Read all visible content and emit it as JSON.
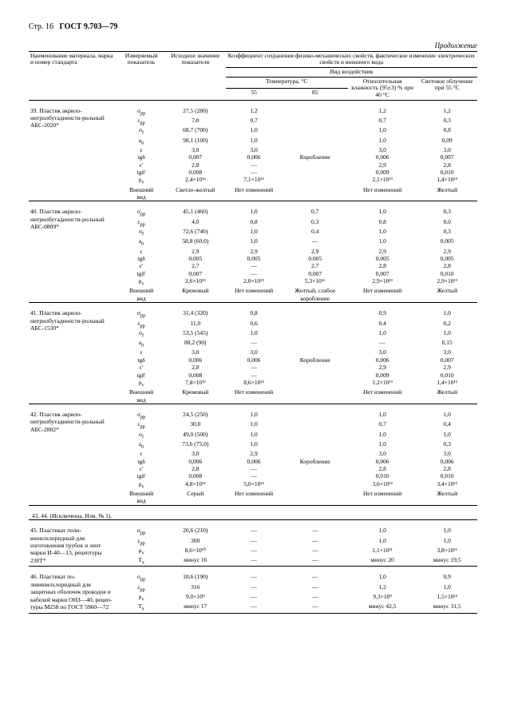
{
  "page_label": "Стр. 16",
  "standard": "ГОСТ 9.703—79",
  "continuation": "Продолжение",
  "header": {
    "col1": "Наименование материала, марка и номер стандарта",
    "col2": "Измеряемый показатель",
    "col3": "Исходное значение показателя",
    "group": "Коэффициент сохранения физико-механических свойств, фактическое изменение электрических свойств и внешнего вида",
    "subgroup": "Вид воздействия",
    "temp": "Температура, °С",
    "t55": "55",
    "t85": "85",
    "hum": "Относительная влажность (95±3) % при 40 °С",
    "light": "Световое облучение при 55 °С"
  },
  "excluded_row": "43, 44. (Исключены, Изм. № 1).",
  "materials": [
    {
      "name": "39. Пластик акрило-нитрилбутадиенсти-рольный АБС-2020*",
      "rows": [
        {
          "p": "σ_рр",
          "i": "27,5 (280)",
          "a": "1,2",
          "b": "",
          "c": "1,2",
          "d": "1,2"
        },
        {
          "p": "ε_рр",
          "i": "7,0",
          "a": "0,7",
          "b": "",
          "c": "0,7",
          "d": "0,3"
        },
        {
          "p": "σ_f",
          "i": "68,7 (700)",
          "a": "1,0",
          "b": "",
          "c": "1,0",
          "d": "0,8"
        },
        {
          "p": "a_п",
          "i": "98,1 (100)",
          "a": "1,0",
          "b": "",
          "c": "1,0",
          "d": "0,09"
        },
        {
          "p": "ε",
          "i": "3,0",
          "a": "3,0",
          "b": "",
          "c": "3,0",
          "d": "3,0"
        },
        {
          "p": "tgδ",
          "i": "0,007",
          "a": "0,006",
          "b": "Коробление",
          "c": "0,006",
          "d": "0,007"
        },
        {
          "p": "ε'",
          "i": "2,8",
          "a": "—",
          "b": "",
          "c": "2,9",
          "d": "2,8"
        },
        {
          "p": "tgδ'",
          "i": "0,008",
          "a": "—",
          "b": "",
          "c": "0,009",
          "d": "0,010"
        },
        {
          "p": "ρ_v",
          "i": "2,4×10¹³",
          "a": "7,1×10¹²",
          "b": "",
          "c": "2,1×10¹³",
          "d": "1,4×10¹³"
        },
        {
          "p": "Внешний вид",
          "i": "Светло-желтый",
          "a": "Нет изменений",
          "b": "",
          "c": "Нет изменений",
          "d": "Желтый"
        }
      ]
    },
    {
      "name": "40. Пластик акрило-нитрилбутадиенсти-рольный АБС-0809*",
      "rows": [
        {
          "p": "σ_рр",
          "i": "45,1 (460)",
          "a": "1,0",
          "b": "0,7",
          "c": "1,0",
          "d": "0,3"
        },
        {
          "p": "ε_рр",
          "i": "4,0",
          "a": "0,8",
          "b": "0,3",
          "c": "0,8",
          "d": "0,0"
        },
        {
          "p": "σ_f",
          "i": "72,6 (740)",
          "a": "1,0",
          "b": "0,4",
          "c": "1,0",
          "d": "0,3"
        },
        {
          "p": "a_п",
          "i": "58,8 (60,0)",
          "a": "1,0",
          "b": "—",
          "c": "1,0",
          "d": "0,005"
        },
        {
          "p": "ε",
          "i": "2,9",
          "a": "2,9",
          "b": "2,9",
          "c": "2,9",
          "d": "2,9"
        },
        {
          "p": "tgδ",
          "i": "0,005",
          "a": "0,005",
          "b": "0,005",
          "c": "0,005",
          "d": "0,005"
        },
        {
          "p": "ε'",
          "i": "2,7",
          "a": "—",
          "b": "2,7",
          "c": "2,8",
          "d": "2,8"
        },
        {
          "p": "tgδ'",
          "i": "0,007",
          "a": "—",
          "b": "0,007",
          "c": "0,007",
          "d": "0,010"
        },
        {
          "p": "ρ_v",
          "i": "2,6×10¹³",
          "a": "2,0×10¹⁵",
          "b": "5,3×10¹⁶",
          "c": "2,9×10¹³",
          "d": "2,9×10¹³"
        },
        {
          "p": "Внешний вид",
          "i": "Кремовый",
          "a": "Нет изменений",
          "b": "Желтый, слабое коробление",
          "c": "Нет изменений",
          "d": "Желтый"
        }
      ]
    },
    {
      "name": "41. Пластик акрило-нитрилбутадиенсти-рольный АБС-1530*",
      "rows": [
        {
          "p": "σ_рр",
          "i": "31,4 (320)",
          "a": "0,8",
          "b": "",
          "c": "0,9",
          "d": "1,0"
        },
        {
          "p": "ε_рр",
          "i": "11,0",
          "a": "0,6",
          "b": "",
          "c": "0,4",
          "d": "0,2"
        },
        {
          "p": "σ_f",
          "i": "53,5 (545)",
          "a": "1,0",
          "b": "",
          "c": "1,0",
          "d": "1,0"
        },
        {
          "p": "a_п",
          "i": "88,2 (90)",
          "a": "—",
          "b": "",
          "c": "—",
          "d": "0,15"
        },
        {
          "p": "ε",
          "i": "3,0",
          "a": "3,0",
          "b": "",
          "c": "3,0",
          "d": "3,0"
        },
        {
          "p": "tgδ",
          "i": "0,006",
          "a": "0,006",
          "b": "Коробление",
          "c": "0,006",
          "d": "0,007"
        },
        {
          "p": "ε'",
          "i": "2,8",
          "a": "—",
          "b": "",
          "c": "2,9",
          "d": "2,9"
        },
        {
          "p": "tgδ'",
          "i": "0,008",
          "a": "—",
          "b": "",
          "c": "0,009",
          "d": "0,010"
        },
        {
          "p": "ρ_v",
          "i": "7,8×10¹²",
          "a": "8,6×10¹²",
          "b": "",
          "c": "1,2×10¹³",
          "d": "1,4×10¹²"
        },
        {
          "p": "Внешний вид",
          "i": "Кремовый",
          "a": "Нет изменений",
          "b": "",
          "c": "Нет изменений",
          "d": "Желтый"
        }
      ]
    },
    {
      "name": "42. Пластик акрило-нитрилбутадиенсти-рольный АБС-2802*",
      "rows": [
        {
          "p": "σ_рр",
          "i": "24,5 (250)",
          "a": "1,0",
          "b": "",
          "c": "1,0",
          "d": "1,0"
        },
        {
          "p": "ε_рр",
          "i": "30,0",
          "a": "1,0",
          "b": "",
          "c": "0,7",
          "d": "0,4"
        },
        {
          "p": "σ_f",
          "i": "49,0 (500)",
          "a": "1,0",
          "b": "",
          "c": "1,0",
          "d": "1,0"
        },
        {
          "p": "a_п",
          "i": "73,6 (75,0)",
          "a": "1,0",
          "b": "",
          "c": "1,0",
          "d": "0,3"
        },
        {
          "p": "ε",
          "i": "3,0",
          "a": "2,9",
          "b": "",
          "c": "3,0",
          "d": "3,0"
        },
        {
          "p": "tgδ",
          "i": "0,006",
          "a": "0,006",
          "b": "Коробление",
          "c": "0,006",
          "d": "0,006"
        },
        {
          "p": "ε'",
          "i": "2,8",
          "a": "—",
          "b": "",
          "c": "2,8",
          "d": "2,8"
        },
        {
          "p": "tgδ'",
          "i": "0,008",
          "a": "—",
          "b": "",
          "c": "0,010",
          "d": "0,010"
        },
        {
          "p": "ρ_v",
          "i": "4,8×10¹²",
          "a": "5,0×10¹²",
          "b": "",
          "c": "3,6×10¹²",
          "d": "3,4×10¹²"
        },
        {
          "p": "Внешний вид",
          "i": "Серый",
          "a": "Нет изменений",
          "b": "",
          "c": "Нет изменений",
          "d": "Желтый"
        }
      ]
    },
    {
      "name": "45. Пластикат поли-винилхлоридный для изготовления трубок и лент марки И-40—13, рецептуры 230Т*",
      "rows": [
        {
          "p": "σ_рр",
          "i": "20,6 (210)",
          "a": "—",
          "b": "—",
          "c": "1,0",
          "d": "1,0"
        },
        {
          "p": "ε_рр",
          "i": "300",
          "a": "—",
          "b": "—",
          "c": "1,0",
          "d": "1,0"
        },
        {
          "p": "ρ_v",
          "i": "8,6×10¹⁰",
          "a": "—",
          "b": "—",
          "c": "1,1×10¹¹",
          "d": "3,8×10¹¹"
        },
        {
          "p": "T_x",
          "i": "минус 16",
          "a": "—",
          "b": "—",
          "c": "минус 20",
          "d": "минус 19,5"
        }
      ]
    },
    {
      "name": "46. Пластикат по-ливинилхлоридный для защитных оболочек проводов и кабелей марки ОНЗ—40, рецеп-туры М258 по ГОСТ 5960—72",
      "rows": [
        {
          "p": "σ_рр",
          "i": "18,6 (190)",
          "a": "—",
          "b": "—",
          "c": "1,0",
          "d": "0,9"
        },
        {
          "p": "ε_рр",
          "i": "316",
          "a": "—",
          "b": "—",
          "c": "1,2",
          "d": "1,0"
        },
        {
          "p": "ρ_v",
          "i": "9,0×10⁹",
          "a": "—",
          "b": "—",
          "c": "9,3×10⁹",
          "d": "1,5×10¹²"
        },
        {
          "p": "T_x",
          "i": "минус 17",
          "a": "—",
          "b": "—",
          "c": "минус 42,5",
          "d": "минус 31,5"
        }
      ]
    }
  ]
}
